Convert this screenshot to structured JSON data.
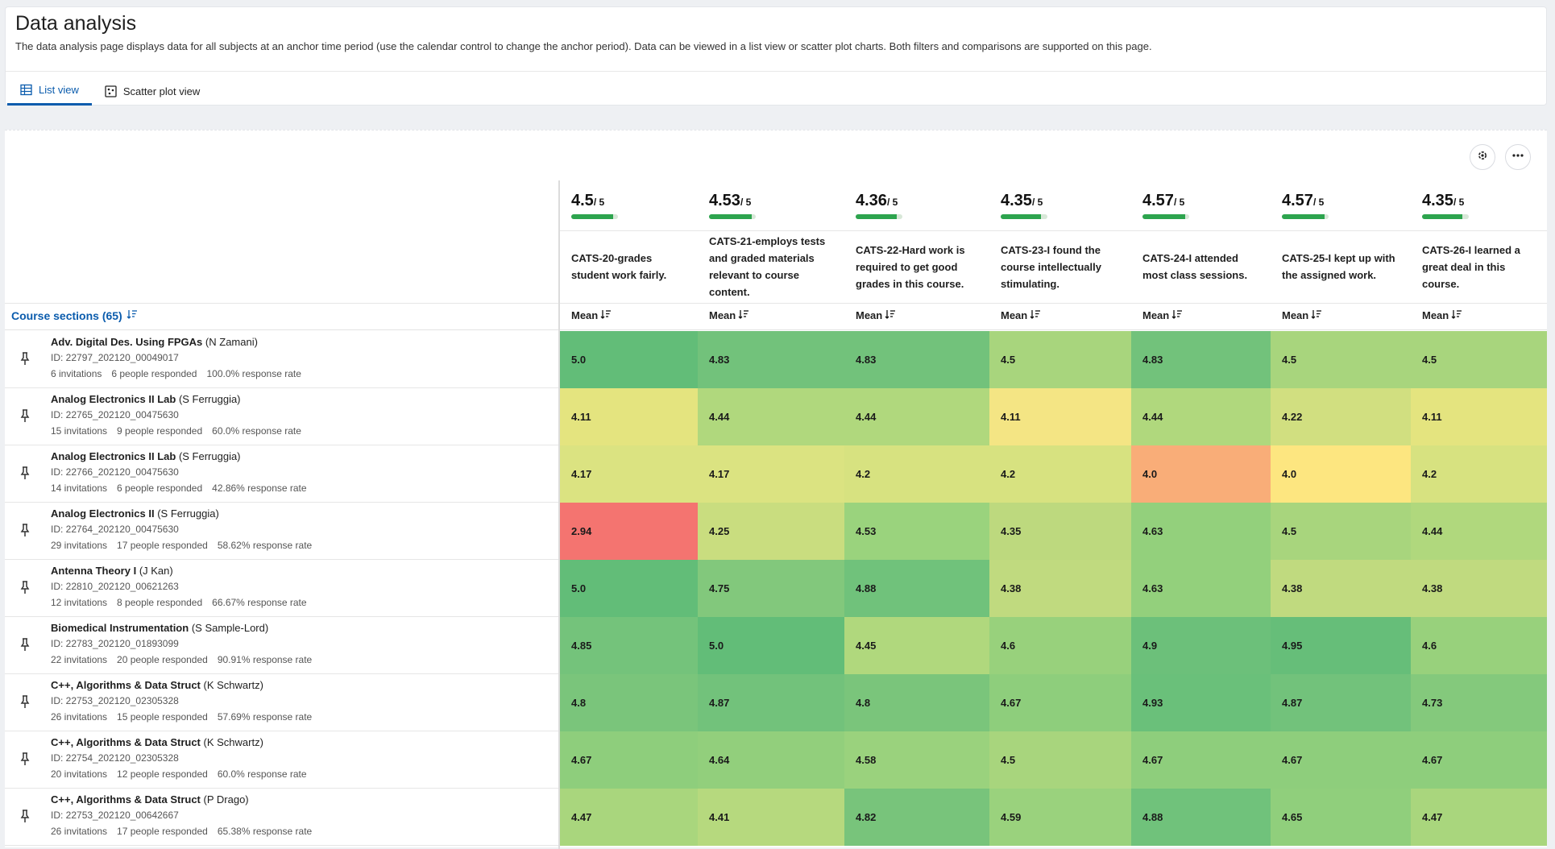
{
  "page": {
    "title": "Data analysis",
    "description": "The data analysis page displays data for all subjects at an anchor time period (use the calendar control to change the anchor period). Data can be viewed in a list view or scatter plot charts. Both filters and comparisons are supported on this page."
  },
  "tabs": [
    {
      "label": "List view",
      "icon": "table-icon",
      "active": true
    },
    {
      "label": "Scatter plot view",
      "icon": "scatter-icon",
      "active": false
    }
  ],
  "toolbar": {
    "settings_icon": "settings-gear-icon",
    "more_icon": "more-horizontal-icon"
  },
  "table": {
    "sections_label": "Course sections (65)",
    "mean_label": "Mean",
    "max_label": "/ 5",
    "questions": [
      {
        "score": "4.5",
        "fraction": 0.9,
        "text": "CATS-20-grades student work fairly."
      },
      {
        "score": "4.53",
        "fraction": 0.906,
        "text": "CATS-21-employs tests and graded materials relevant to course content."
      },
      {
        "score": "4.36",
        "fraction": 0.872,
        "text": "CATS-22-Hard work is required to get good grades in this course."
      },
      {
        "score": "4.35",
        "fraction": 0.87,
        "text": "CATS-23-I found the course intellectually stimulating."
      },
      {
        "score": "4.57",
        "fraction": 0.914,
        "text": "CATS-24-I attended most class sessions."
      },
      {
        "score": "4.57",
        "fraction": 0.914,
        "text": "CATS-25-I kept up with the assigned work."
      },
      {
        "score": "4.35",
        "fraction": 0.87,
        "text": "CATS-26-I learned a great deal in this course."
      }
    ],
    "rows": [
      {
        "course": "Adv. Digital Des. Using FPGAs",
        "instructor": "(N Zamani)",
        "id": "ID: 22797_202120_00049017",
        "invitations": "6 invitations",
        "responded": "6 people responded",
        "rate": "100.0% response rate",
        "values": [
          "5.0",
          "4.83",
          "4.83",
          "4.5",
          "4.83",
          "4.5",
          "4.5"
        ],
        "colors": [
          "#62bd78",
          "#72c27b",
          "#72c27b",
          "#a8d57d",
          "#72c27b",
          "#a8d57d",
          "#a8d57d"
        ]
      },
      {
        "course": "Analog Electronics II Lab",
        "instructor": "(S Ferruggia)",
        "id": "ID: 22765_202120_00475630",
        "invitations": "15 invitations",
        "responded": "9 people responded",
        "rate": "60.0% response rate",
        "values": [
          "4.11",
          "4.44",
          "4.44",
          "4.11",
          "4.44",
          "4.22",
          "4.11"
        ],
        "colors": [
          "#e4e47f",
          "#b0d87d",
          "#b0d87d",
          "#f4e584",
          "#b0d87d",
          "#d1df80",
          "#e4e47f"
        ]
      },
      {
        "course": "Analog Electronics II Lab",
        "instructor": "(S Ferruggia)",
        "id": "ID: 22766_202120_00475630",
        "invitations": "14 invitations",
        "responded": "6 people responded",
        "rate": "42.86% response rate",
        "values": [
          "4.17",
          "4.17",
          "4.2",
          "4.2",
          "4.0",
          "4.0",
          "4.2"
        ],
        "colors": [
          "#dbe381",
          "#dbe381",
          "#d7e280",
          "#d7e280",
          "#f9ad78",
          "#fde680",
          "#d7e280"
        ]
      },
      {
        "course": "Analog Electronics II",
        "instructor": "(S Ferruggia)",
        "id": "ID: 22764_202120_00475630",
        "invitations": "29 invitations",
        "responded": "17 people responded",
        "rate": "58.62% response rate",
        "values": [
          "2.94",
          "4.25",
          "4.53",
          "4.35",
          "4.63",
          "4.5",
          "4.44"
        ],
        "colors": [
          "#f47470",
          "#c9dd7f",
          "#9ad37d",
          "#bdd97e",
          "#93d07c",
          "#a8d57d",
          "#b0d87d"
        ]
      },
      {
        "course": "Antenna Theory I",
        "instructor": "(J Kan)",
        "id": "ID: 22810_202120_00621263",
        "invitations": "12 invitations",
        "responded": "8 people responded",
        "rate": "66.67% response rate",
        "values": [
          "5.0",
          "4.75",
          "4.88",
          "4.38",
          "4.63",
          "4.38",
          "4.38"
        ],
        "colors": [
          "#62bd78",
          "#82c87c",
          "#70c27b",
          "#c0da7f",
          "#93d07c",
          "#c0da7f",
          "#c0da7f"
        ]
      },
      {
        "course": "Biomedical Instrumentation",
        "instructor": "(S Sample-Lord)",
        "id": "ID: 22783_202120_01893099",
        "invitations": "22 invitations",
        "responded": "20 people responded",
        "rate": "90.91% response rate",
        "values": [
          "4.85",
          "5.0",
          "4.45",
          "4.6",
          "4.9",
          "4.95",
          "4.6"
        ],
        "colors": [
          "#74c37b",
          "#62bd78",
          "#b0d87d",
          "#98d17c",
          "#6cc07a",
          "#66be79",
          "#98d17c"
        ]
      },
      {
        "course": "C++, Algorithms & Data Struct",
        "instructor": "(K Schwartz)",
        "id": "ID: 22753_202120_02305328",
        "invitations": "26 invitations",
        "responded": "15 people responded",
        "rate": "57.69% response rate",
        "values": [
          "4.8",
          "4.87",
          "4.8",
          "4.67",
          "4.93",
          "4.87",
          "4.73"
        ],
        "colors": [
          "#7ac57b",
          "#72c27b",
          "#7ac57b",
          "#8ece7c",
          "#6ac07a",
          "#72c27b",
          "#84c97c"
        ]
      },
      {
        "course": "C++, Algorithms & Data Struct",
        "instructor": "(K Schwartz)",
        "id": "ID: 22754_202120_02305328",
        "invitations": "20 invitations",
        "responded": "12 people responded",
        "rate": "60.0% response rate",
        "values": [
          "4.67",
          "4.64",
          "4.58",
          "4.5",
          "4.67",
          "4.67",
          "4.67"
        ],
        "colors": [
          "#8ece7c",
          "#92cf7c",
          "#9ad27d",
          "#a8d57d",
          "#8ece7c",
          "#8ece7c",
          "#8ece7c"
        ]
      },
      {
        "course": "C++, Algorithms & Data Struct",
        "instructor": "(P Drago)",
        "id": "ID: 22753_202120_00642667",
        "invitations": "26 invitations",
        "responded": "17 people responded",
        "rate": "65.38% response rate",
        "values": [
          "4.47",
          "4.41",
          "4.82",
          "4.59",
          "4.88",
          "4.65",
          "4.47"
        ],
        "colors": [
          "#a9d67d",
          "#b6d97e",
          "#78c47b",
          "#9ad27d",
          "#70c27b",
          "#90cf7c",
          "#a9d67d"
        ]
      }
    ]
  }
}
